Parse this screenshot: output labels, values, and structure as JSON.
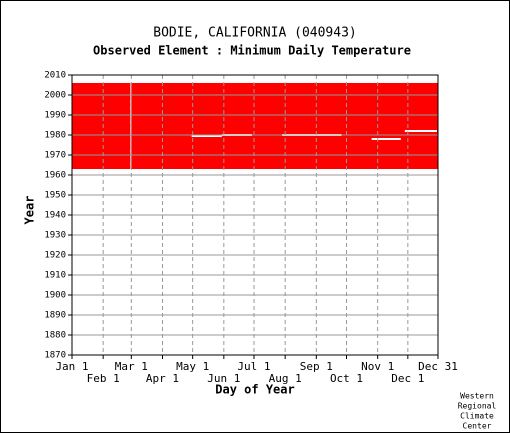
{
  "chart_data": {
    "type": "availability",
    "title": "BODIE, CALIFORNIA   (040943)",
    "subtitle": "Observed Element : Minimum Daily Temperature",
    "x_label": "Day of Year",
    "y_label": "Year",
    "color": "#ff0000",
    "grid": true,
    "xlim": [
      1,
      365
    ],
    "xticks": [
      {
        "value": 1,
        "label": "Jan 1"
      },
      {
        "value": 32,
        "label": "Feb 1"
      },
      {
        "value": 60,
        "label": "Mar 1"
      },
      {
        "value": 91,
        "label": "Apr 1"
      },
      {
        "value": 121,
        "label": "May 1"
      },
      {
        "value": 152,
        "label": "Jun 1"
      },
      {
        "value": 182,
        "label": "Jul 1"
      },
      {
        "value": 213,
        "label": "Aug 1"
      },
      {
        "value": 244,
        "label": "Sep 1"
      },
      {
        "value": 274,
        "label": "Oct 1"
      },
      {
        "value": 305,
        "label": "Nov 1"
      },
      {
        "value": 335,
        "label": "Dec 1"
      },
      {
        "value": 365,
        "label": "Dec 31"
      }
    ],
    "ylim": [
      1870,
      2010
    ],
    "yticks": [
      1870,
      1880,
      1890,
      1900,
      1910,
      1920,
      1930,
      1940,
      1950,
      1960,
      1970,
      1980,
      1990,
      2000,
      2010
    ],
    "coverage": {
      "day_start": 1,
      "day_end": 365,
      "year_start": 1963,
      "year_end": 2006
    },
    "gaps": [
      {
        "day_start": 59,
        "day_end": 60,
        "year_start": 1963,
        "year_end": 2006
      },
      {
        "day_start": 120,
        "day_end": 150,
        "year_start": 1979,
        "year_end": 1980
      },
      {
        "day_start": 150,
        "day_end": 180,
        "year_start": 1979.5,
        "year_end": 1980.5
      },
      {
        "day_start": 210,
        "day_end": 269,
        "year_start": 1979.5,
        "year_end": 1980.5
      },
      {
        "day_start": 299,
        "day_end": 328,
        "year_start": 1977.5,
        "year_end": 1978.5
      },
      {
        "day_start": 332,
        "day_end": 364,
        "year_start": 1981.5,
        "year_end": 1982.5
      }
    ],
    "credit": [
      "Western",
      "Regional",
      "Climate",
      "Center"
    ]
  }
}
